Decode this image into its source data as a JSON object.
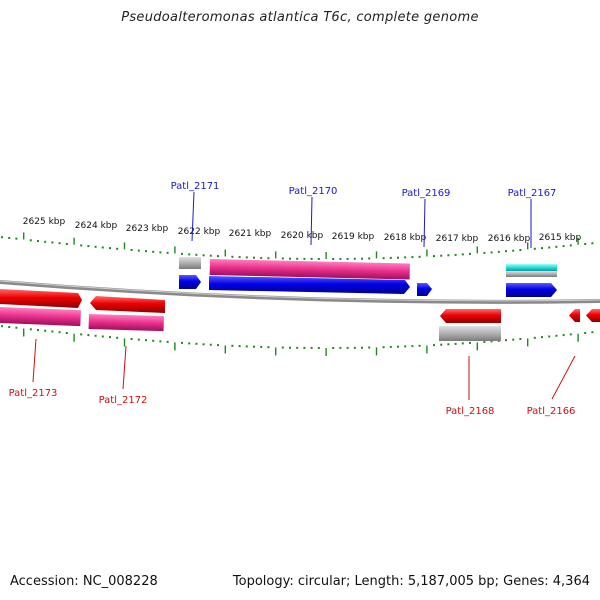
{
  "title": "Pseudoalteromonas atlantica T6c, complete genome",
  "accession": "Accession: NC_008228",
  "topology": "Topology: circular; Length: 5,187,005 bp; Genes: 4,364",
  "scale_unit": "kbp",
  "upper_scale_labels": [
    "2625",
    "2624",
    "2623",
    "2622",
    "2621",
    "2620",
    "2619",
    "2618",
    "2617",
    "2616",
    "2615"
  ],
  "colors": {
    "forward_label": "#1a1acc",
    "reverse_label": "#cc1111",
    "tick": "#1e8a1e",
    "backbone": "#888888",
    "cds_forward": "#0000ee",
    "cds_reverse": "#ee0000",
    "product_pink": "#e8308a",
    "product_grey": "#aaaaaa",
    "product_cyan": "#22dddd"
  },
  "genes": [
    {
      "name": "Patl_2171",
      "strand": "forward"
    },
    {
      "name": "Patl_2170",
      "strand": "forward"
    },
    {
      "name": "Patl_2169",
      "strand": "forward"
    },
    {
      "name": "Patl_2167",
      "strand": "forward"
    },
    {
      "name": "Patl_2173",
      "strand": "reverse"
    },
    {
      "name": "Patl_2172",
      "strand": "reverse"
    },
    {
      "name": "Patl_2168",
      "strand": "reverse"
    },
    {
      "name": "Patl_2166",
      "strand": "reverse"
    }
  ]
}
